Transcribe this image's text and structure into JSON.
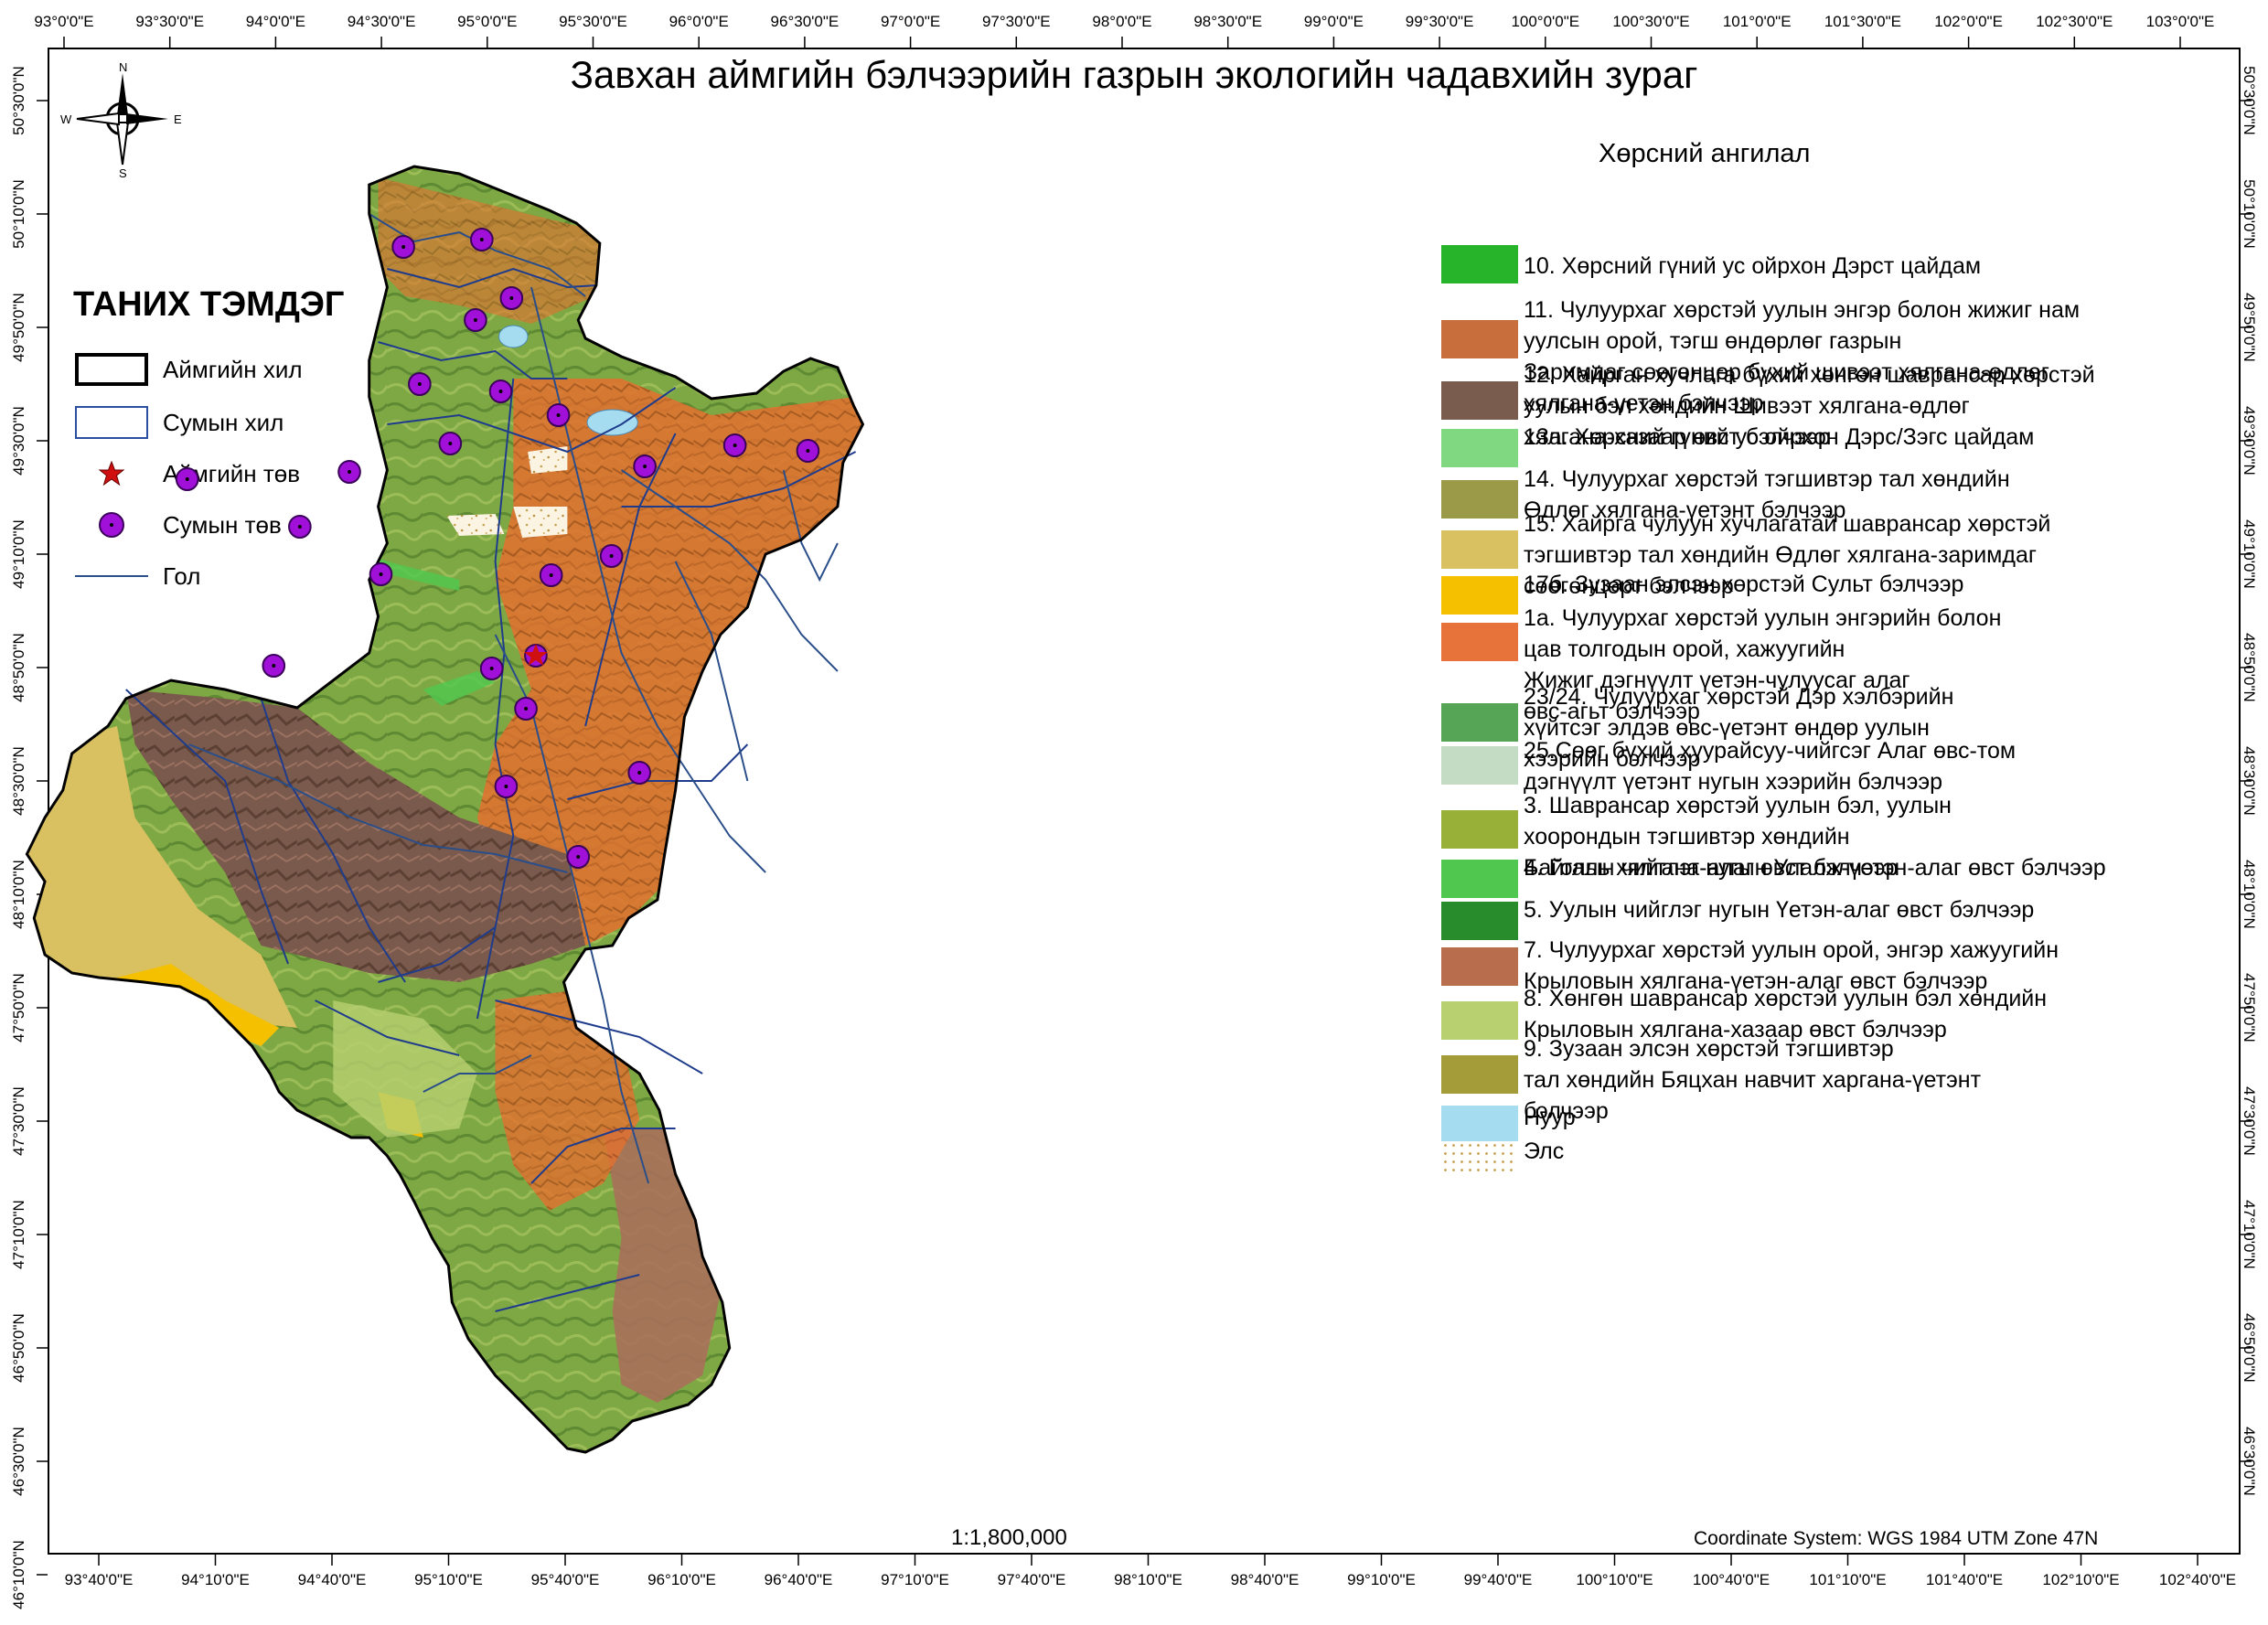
{
  "title": "Завхан аймгийн бэлчээрийн газрын экологийн чадавхийн зураг",
  "scale_text": "1:1,800,000",
  "coordinate_system": "Coordinate System: WGS 1984 UTM Zone 47N",
  "north_arrow": {
    "n": "N",
    "s": "S",
    "e": "E",
    "w": "W"
  },
  "ticks": {
    "top": [
      "93°0'0\"E",
      "93°30'0\"E",
      "94°0'0\"E",
      "94°30'0\"E",
      "95°0'0\"E",
      "95°30'0\"E",
      "96°0'0\"E",
      "96°30'0\"E",
      "97°0'0\"E",
      "97°30'0\"E",
      "98°0'0\"E",
      "98°30'0\"E",
      "99°0'0\"E",
      "99°30'0\"E",
      "100°0'0\"E",
      "100°30'0\"E",
      "101°0'0\"E",
      "101°30'0\"E",
      "102°0'0\"E",
      "102°30'0\"E",
      "103°0'0\"E"
    ],
    "bottom": [
      "93°40'0\"E",
      "94°10'0\"E",
      "94°40'0\"E",
      "95°10'0\"E",
      "95°40'0\"E",
      "96°10'0\"E",
      "96°40'0\"E",
      "97°10'0\"E",
      "97°40'0\"E",
      "98°10'0\"E",
      "98°40'0\"E",
      "99°10'0\"E",
      "99°40'0\"E",
      "100°10'0\"E",
      "100°40'0\"E",
      "101°10'0\"E",
      "101°40'0\"E",
      "102°10'0\"E",
      "102°40'0\"E"
    ],
    "left": [
      "50°30'0\"N",
      "50°10'0\"N",
      "49°50'0\"N",
      "49°30'0\"N",
      "49°10'0\"N",
      "48°50'0\"N",
      "48°30'0\"N",
      "48°10'0\"N",
      "47°50'0\"N",
      "47°30'0\"N",
      "47°10'0\"N",
      "46°50'0\"N",
      "46°30'0\"N",
      "46°10'0\"N"
    ],
    "right": [
      "50°30'0\"N",
      "50°10'0\"N",
      "49°50'0\"N",
      "49°30'0\"N",
      "49°10'0\"N",
      "48°50'0\"N",
      "48°30'0\"N",
      "48°10'0\"N",
      "47°50'0\"N",
      "47°30'0\"N",
      "47°10'0\"N",
      "46°50'0\"N",
      "46°30'0\"N"
    ]
  },
  "legend_left": {
    "heading": "ТАНИХ ТЭМДЭГ",
    "items": [
      {
        "label": "Аймгийн хил",
        "symbol": "aimag-boundary-symbol"
      },
      {
        "label": "Сумын хил",
        "symbol": "sum-boundary-symbol"
      },
      {
        "label": "Аймгийн төв",
        "symbol": "red-star-icon"
      },
      {
        "label": "Сумын төв",
        "symbol": "purple-dot-icon"
      },
      {
        "label": "Гол",
        "symbol": "river-line-symbol"
      }
    ]
  },
  "legend_right": {
    "heading": "Хөрсний ангилал",
    "items": [
      {
        "label": "10. Хөрсний гүний ус ойрхон Дэрст цайдам",
        "color": "#27b42a"
      },
      {
        "label": "11. Чулуурхаг хөрстэй уулын энгэр болон жижиг нам\nуулсын орой, тэгш өндөрлөг газрын\nЗаримдаг сөөгөнцөр бүхий шивээт хялгана-өдлөг\nхялгана-үетэн бэлчээр",
        "color": "#c86e3c"
      },
      {
        "label": "12. Хайрган хучлага бүхий хөнгөн шаврансар хөрстэй\n уулын бэл хөндийн Шивээт хялгана-өдлөг\n хялгана-хазаар өвст бэлчээр",
        "color": "#7a5c4e"
      },
      {
        "label": "13а. Хөрсний гүний ус ойрхон Дэрс/Зэгс цайдам",
        "color": "#80d880"
      },
      {
        "label": "14. Чулуурхаг хөрстэй тэгшивтэр тал хөндийн\n Өдлөг хялгана-үетэнт бэлчээр",
        "color": "#9a9a48"
      },
      {
        "label": "15. Хайрга чулуун хучлагатай шаврансар хөрстэй\n тэгшивтэр тал хөндийн Өдлөг хялгана-заримдаг\n сөөгөнцөрт бэлчээр",
        "color": "#d9c060"
      },
      {
        "label": "17б. Зузаан элсэн хөрстэй Сульт бэлчээр",
        "color": "#f5c000"
      },
      {
        "label": "1а. Чулуурхаг хөрстэй уулын энгэрийн болон\nцав толгодын орой, хажуугийн\nЖижиг дэгнүүлт үетэн-чулуусаг алаг\n өвс-агьт бэлчээр",
        "color": "#e8733a"
      },
      {
        "label": "23/24. Чулуурхаг хөрстэй Дэр хэлбэрийн\n хүйтсэг элдэв өвс-үетэнт өндөр уулын\n хээрийн бэлчээр",
        "color": "#56a456"
      },
      {
        "label": "25.Сөөг бүхий хуурайсуу-чийгсэг Алаг өвс-том\nдэгнүүлт үетэнт нугын хээрийн бэлчээр",
        "color": "#c4dcc4"
      },
      {
        "label": "3. Шаврансар хөрстэй уулын бэл, уулын\nхоорондын тэгшивтэр хөндийн\nБайгаль хялгана-алаг өвст бэлчээр",
        "color": "#98b038"
      },
      {
        "label": "4. Голын чийглэг нугын Улалж-үетэн-алаг өвст бэлчээр",
        "color": "#50c850"
      },
      {
        "label": "5. Уулын чийглэг нугын Үетэн-алаг өвст бэлчээр",
        "color": "#288c2c"
      },
      {
        "label": "7. Чулуурхаг хөрстэй уулын орой, энгэр хажуугийн\n Крыловын хялгана-үетэн-алаг өвст бэлчээр",
        "color": "#b86e4c"
      },
      {
        "label": "8. Хөнгөн шаврансар хөрстэй уулын бэл хөндийн\n Крыловын хялгана-хазаар өвст бэлчээр",
        "color": "#b8d070"
      },
      {
        "label": "9. Зузаан элсэн хөрстэй тэгшивтэр\nтал хөндийн Бяцхан навчит харгана-үетэнт\nбэлчээр",
        "color": "#a49c38"
      },
      {
        "label": "Нуур",
        "color": "#a6dcf0"
      },
      {
        "label": "Элс",
        "color": "sand-dots"
      }
    ]
  }
}
